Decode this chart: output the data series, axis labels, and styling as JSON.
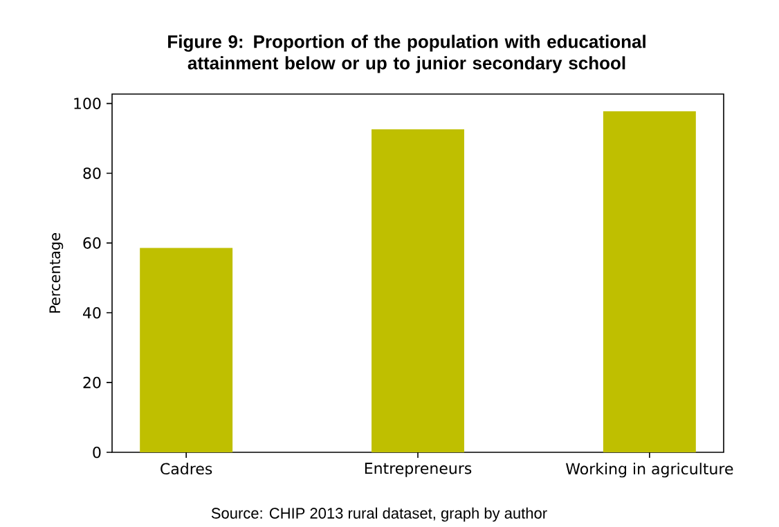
{
  "chart_data": {
    "type": "bar",
    "title": "Figure 9: Proportion of the population with educational attainment below or up to junior secondary school",
    "ylabel": "Percentage",
    "categories": [
      "Cadres",
      "Entrepreneurs",
      "Working in agriculture"
    ],
    "values": [
      58.6,
      92.6,
      97.8
    ],
    "color": "#bfbf00",
    "ylim": [
      0,
      102.7
    ],
    "yticks": [
      0,
      20,
      40,
      60,
      80,
      100
    ],
    "annotations": [
      "Source: CHIP 2013 rural dataset, graph by author"
    ]
  }
}
